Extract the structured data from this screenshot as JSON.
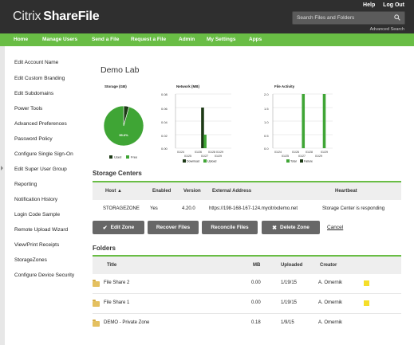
{
  "header": {
    "logo_light": "Citrix",
    "logo_bold": "ShareFile",
    "links": [
      "Help",
      "Log Out"
    ],
    "search_placeholder": "Search Files and Folders",
    "advanced_search": "Advanced Search"
  },
  "nav": [
    "Home",
    "Manage Users",
    "Send a File",
    "Request a File",
    "Admin",
    "My Settings",
    "Apps"
  ],
  "sidebar": [
    "Edit Account Name",
    "Edit Custom Branding",
    "Edit Subdomains",
    "Power Tools",
    "Advanced Preferences",
    "Password Policy",
    "Configure Single Sign-On",
    "Edit Super User Group",
    "Reporting",
    "Notification History",
    "Login Code Sample",
    "Remote Upload Wizard",
    "View/Print Receipts",
    "StorageZones",
    "Configure Device Security"
  ],
  "page_title": "Demo Lab",
  "chart_data": [
    {
      "type": "pie",
      "title": "Storage (GB)",
      "slices": [
        {
          "name": "Used",
          "value": 4.4,
          "color": "#1d3a16"
        },
        {
          "name": "Free",
          "value": 95.6,
          "color": "#3fa535"
        }
      ],
      "center_label": "95.6%",
      "legend": [
        "Used",
        "Free"
      ]
    },
    {
      "type": "bar",
      "title": "Network (MB)",
      "ylim": [
        0,
        0.08
      ],
      "yticks": [
        "0.08",
        "0.06",
        "0.04",
        "0.02",
        "0.00"
      ],
      "top_ticks": [
        "01/24",
        "01/26",
        "01/28",
        "01/29"
      ],
      "bottom_ticks": [
        "01/25",
        "01/27",
        "01/29"
      ],
      "series": [
        {
          "name": "Download",
          "color": "#1d3a16",
          "points": [
            {
              "x": 0.485,
              "v": 0.06
            }
          ]
        },
        {
          "name": "Upload",
          "color": "#3fa535",
          "points": [
            {
              "x": 0.53,
              "v": 0.02
            }
          ]
        }
      ],
      "legend": [
        "Download",
        "Upload"
      ]
    },
    {
      "type": "bar",
      "title": "File Activity",
      "ylim": [
        0,
        2
      ],
      "yticks": [
        "2.0",
        "1.5",
        "1.0",
        "0.5",
        "0.0"
      ],
      "top_ticks": [
        "01/24",
        "01/26",
        "01/28",
        "01/29"
      ],
      "bottom_ticks": [
        "01/25",
        "01/27",
        "01/29"
      ],
      "series": [
        {
          "name": "Total",
          "color": "#3fa535",
          "points": [
            {
              "x": 0.51,
              "v": 2
            },
            {
              "x": 0.86,
              "v": 2
            }
          ]
        },
        {
          "name": "Failure",
          "color": "#1d3a16",
          "points": []
        }
      ],
      "legend": [
        "Total",
        "Failure"
      ]
    }
  ],
  "storage_centers": {
    "title": "Storage Centers",
    "headers": [
      "Host",
      "Enabled",
      "Version",
      "External Address",
      "Heartbeat"
    ],
    "sort_indicator": "▲",
    "rows": [
      [
        "STORAGEZONE",
        "Yes",
        "4.20.0",
        "https://198-168-167-124.mycitrixdemo.net",
        "Storage Center is responding"
      ]
    ],
    "buttons": {
      "edit": "Edit Zone",
      "recover": "Recover Files",
      "reconcile": "Reconcile Files",
      "delete": "Delete Zone",
      "cancel": "Cancel"
    }
  },
  "folders": {
    "title": "Folders",
    "headers": [
      "Title",
      "MB",
      "Uploaded",
      "Creator"
    ],
    "rows": [
      [
        "File Share 2",
        "0.00",
        "1/19/15",
        "A. Omernik"
      ],
      [
        "File Share 1",
        "0.00",
        "1/19/15",
        "A. Omernik"
      ],
      [
        "DEMO - Private Zone",
        "0.18",
        "1/9/15",
        "A. Omernik"
      ]
    ]
  },
  "colors": {
    "accent_green": "#69bd45",
    "header_dark": "#2f2f2f",
    "button_gray": "#676767"
  }
}
